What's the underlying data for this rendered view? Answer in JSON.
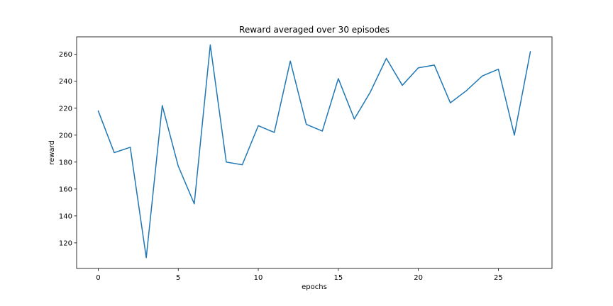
{
  "chart_data": {
    "type": "line",
    "title": "Reward averaged over 30 episodes",
    "xlabel": "epochs",
    "ylabel": "reward",
    "xlim": [
      -1.35,
      28.35
    ],
    "ylim": [
      101,
      273
    ],
    "xticks": [
      0,
      5,
      10,
      15,
      20,
      25
    ],
    "yticks": [
      120,
      140,
      160,
      180,
      200,
      220,
      240,
      260
    ],
    "grid": false,
    "legend": "none",
    "series": [
      {
        "color": "#1f77b4",
        "x": [
          0,
          1,
          2,
          3,
          4,
          5,
          6,
          7,
          8,
          9,
          10,
          11,
          12,
          13,
          14,
          15,
          16,
          17,
          18,
          19,
          20,
          21,
          22,
          23,
          24,
          25,
          26,
          27
        ],
        "y": [
          218,
          187,
          191,
          109,
          222,
          177,
          149,
          267,
          180,
          178,
          207,
          202,
          255,
          208,
          203,
          242,
          212,
          232,
          257,
          237,
          250,
          252,
          224,
          233,
          244,
          249,
          200,
          262
        ]
      }
    ]
  }
}
